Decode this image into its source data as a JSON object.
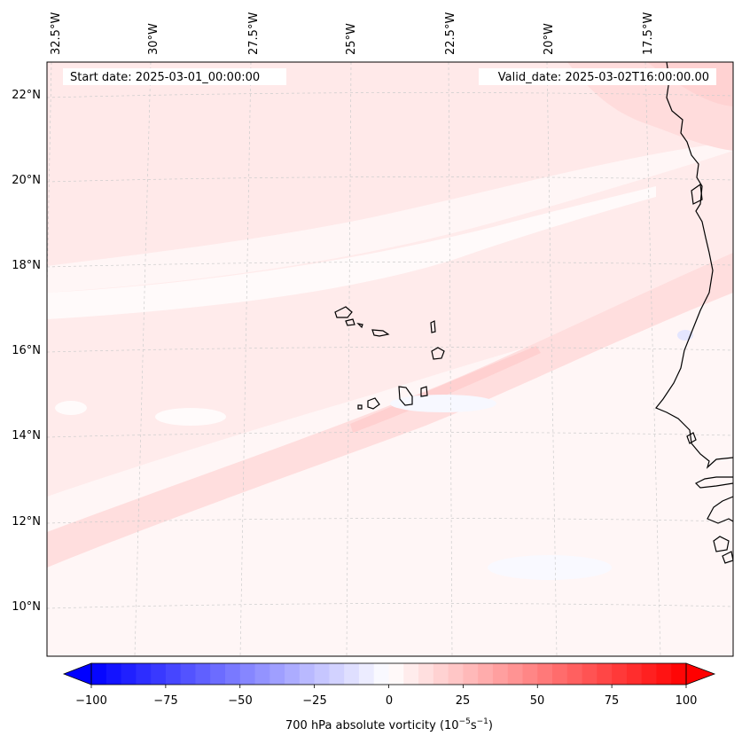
{
  "header": {
    "start_date": "Start date: 2025-03-01_00:00:00",
    "valid_date": "Valid_date: 2025-03-02T16:00:00.00"
  },
  "map": {
    "projection": "Lambert conformal",
    "region": "Cape Verde Islands and West African coast (Senegal)",
    "longitude_labels": [
      "32.5°W",
      "30°W",
      "27.5°W",
      "25°W",
      "22.5°W",
      "20°W",
      "17.5°W"
    ],
    "latitude_labels": [
      "22°N",
      "20°N",
      "18°N",
      "16°N",
      "14°N",
      "12°N",
      "10°N"
    ],
    "field": "700 hPa absolute vorticity"
  },
  "colorbar": {
    "label_main": "700 hPa absolute vorticity (10",
    "label_exp1": "−5",
    "label_mid": "s",
    "label_exp2": "−1",
    "label_end": ")",
    "ticks": [
      "−100",
      "−75",
      "−50",
      "−25",
      "0",
      "25",
      "50",
      "75",
      "100"
    ],
    "min": -100,
    "max": 100,
    "low_color": "#0000ff",
    "mid_color": "#ffffff",
    "high_color": "#ff0000"
  }
}
